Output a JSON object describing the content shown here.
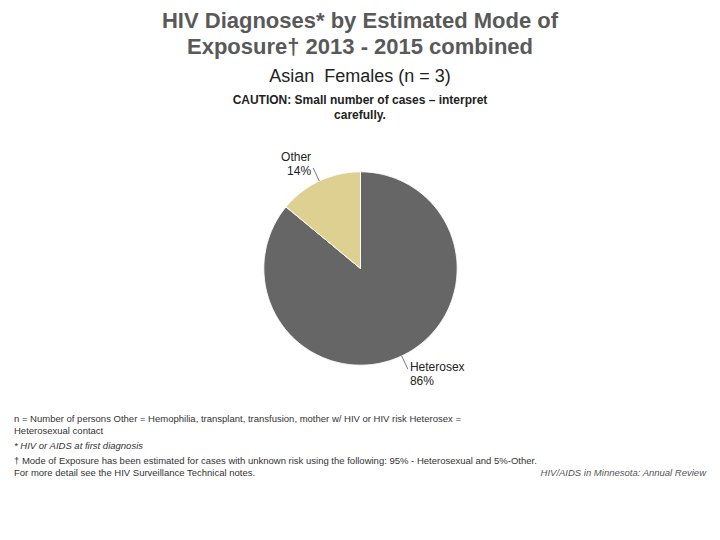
{
  "chart_data": {
    "type": "pie",
    "title": "HIV Diagnoses* by Estimated Mode of\nExposure† 2013 - 2015 combined",
    "subtitle": "Asian  Females (n = 3)",
    "categories": [
      "Heterosex",
      "Other"
    ],
    "values": [
      86,
      14
    ],
    "value_labels": [
      "86%",
      "14%"
    ],
    "colors": [
      "#666666",
      "#ddd090"
    ],
    "data_labels": true,
    "annotations": [
      "CAUTION: Small number of cases – interpret\ncarefully.",
      "n = Number of persons     Other = Hemophilia, transplant, transfusion, mother w/ HIV or HIV risk       Heterosex =",
      "Heterosexual contact",
      "* HIV or AIDS at first diagnosis",
      "† Mode of Exposure has been estimated for cases with unknown risk using the following: 95% - Heterosexual and 5%-Other.",
      "For more detail see the HIV Surveillance Technical notes.",
      "HIV/AIDS in Minnesota: Annual Review"
    ]
  }
}
